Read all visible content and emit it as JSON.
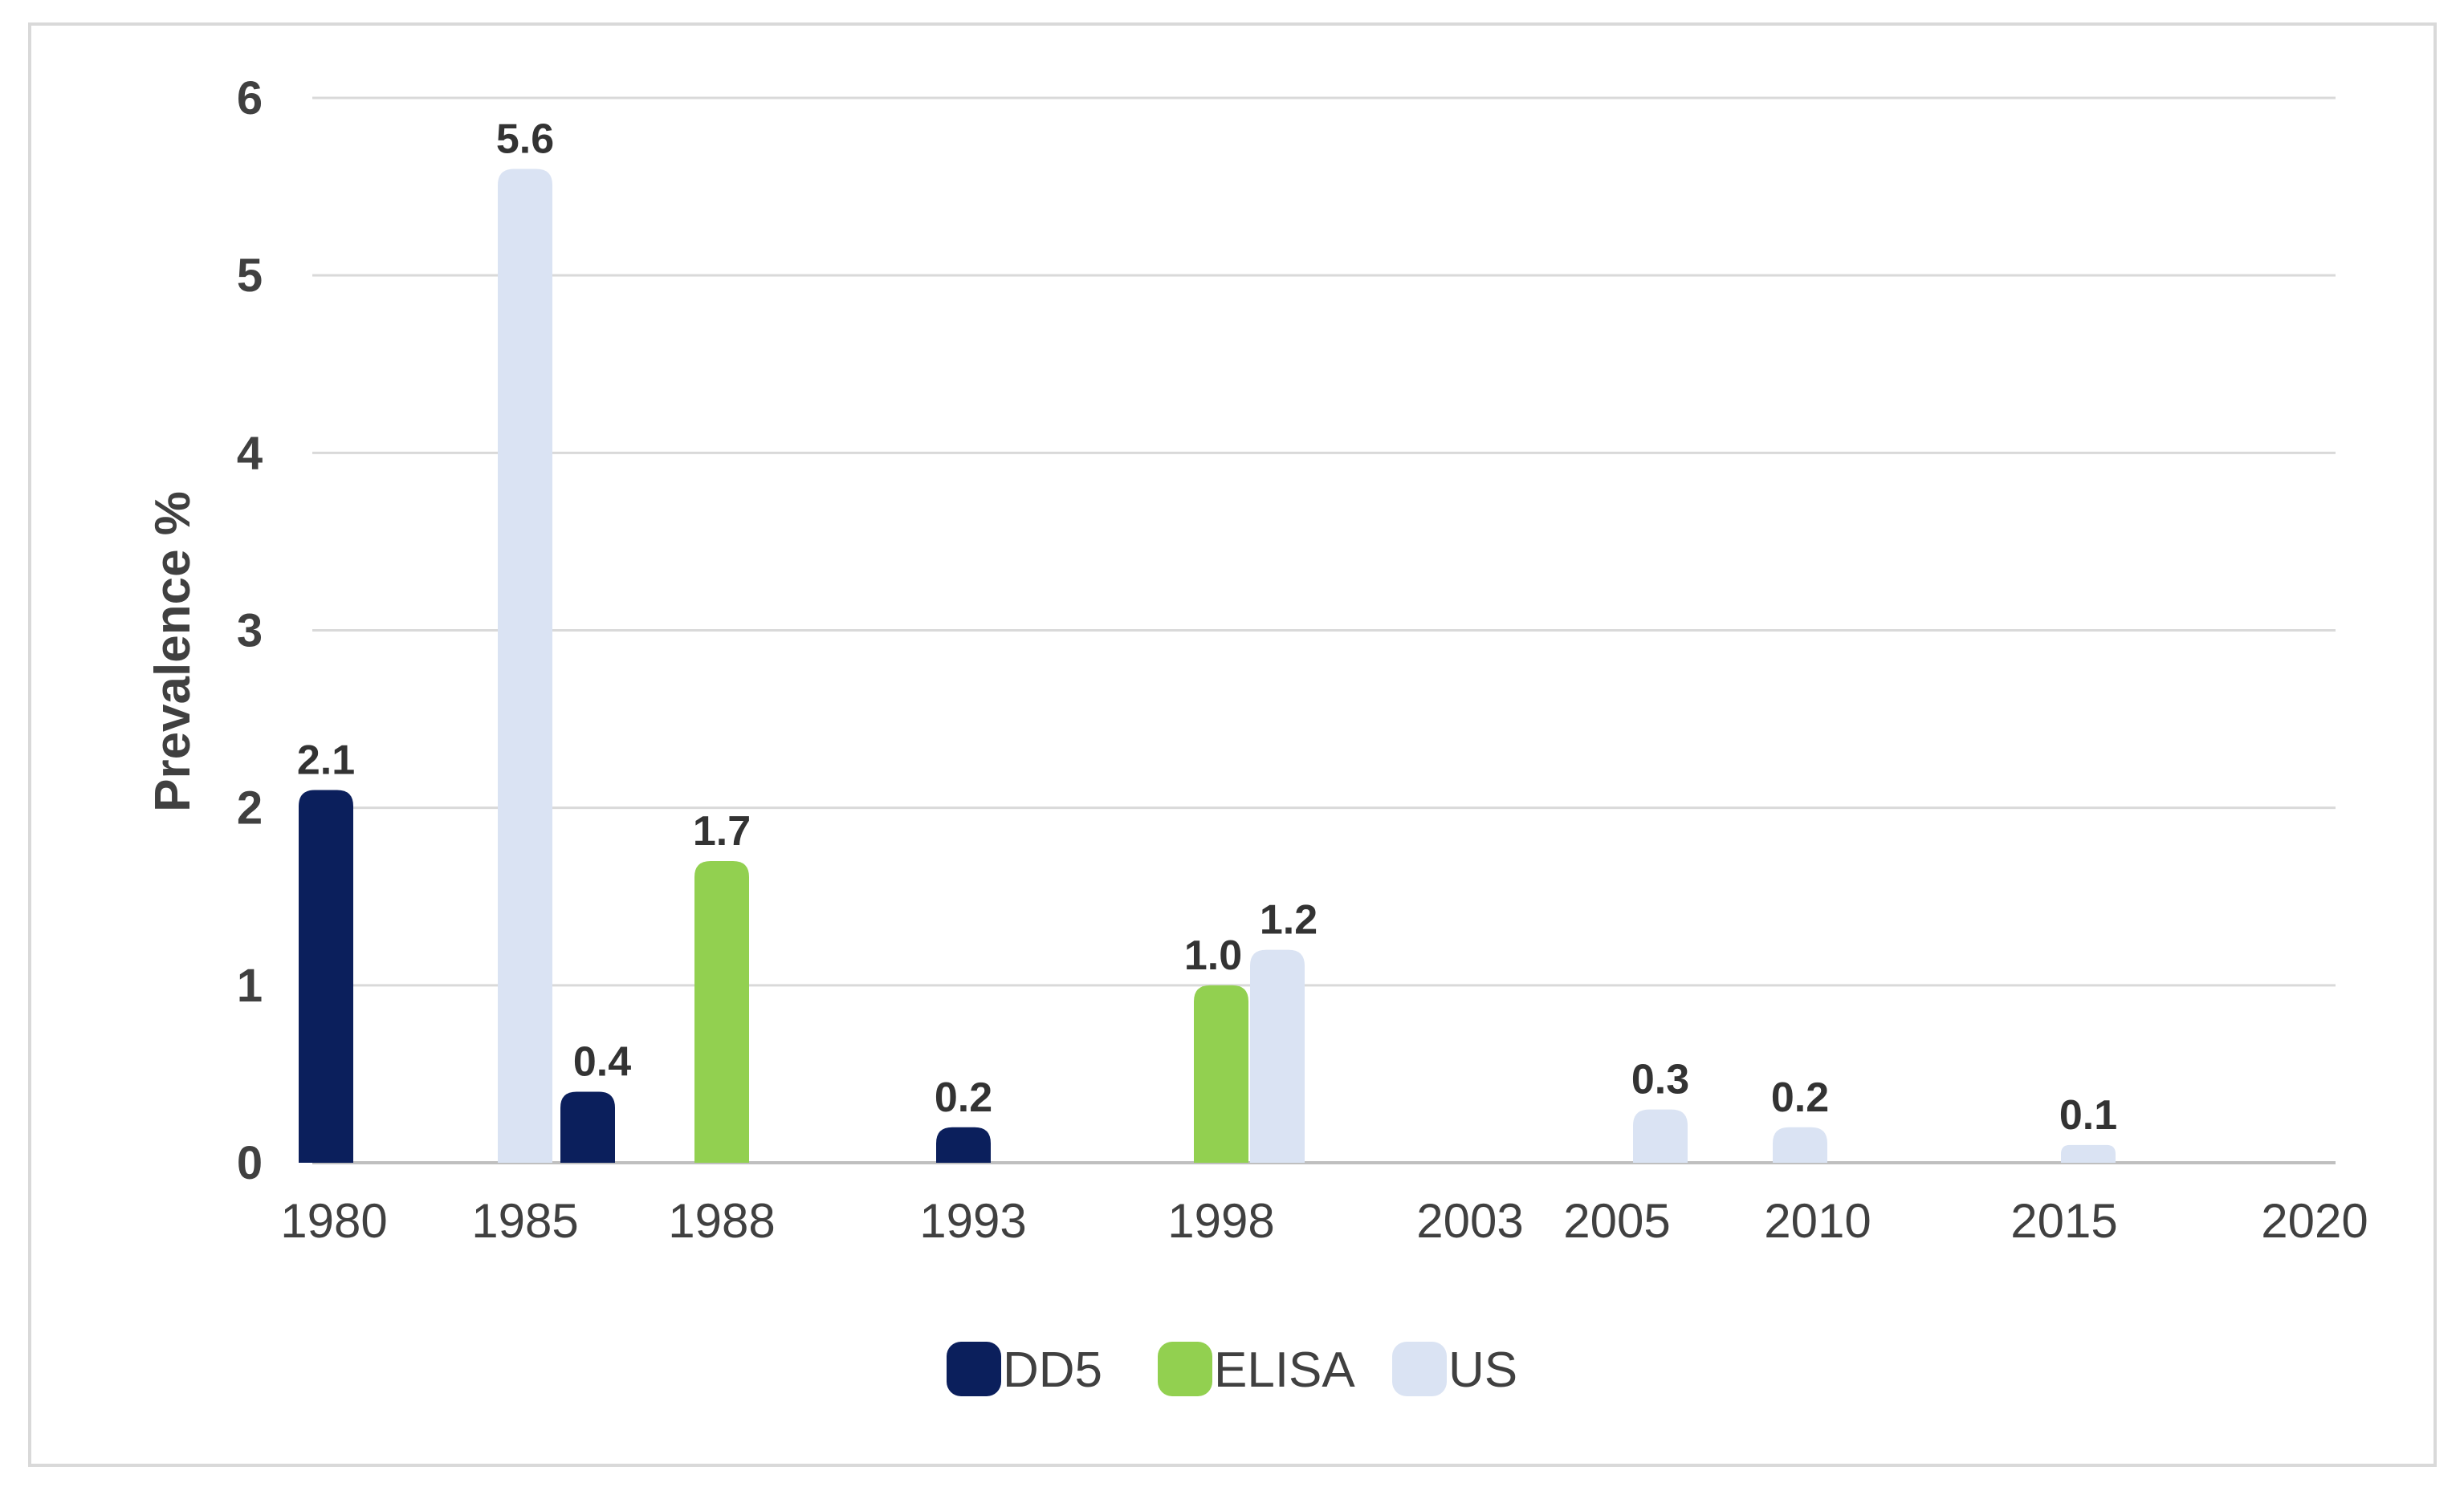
{
  "chart_data": {
    "type": "bar",
    "title": "",
    "xlabel": "",
    "ylabel": "Prevalence %",
    "ylim": [
      0,
      6
    ],
    "yticks": [
      "0",
      "1",
      "2",
      "3",
      "4",
      "5",
      "6"
    ],
    "x_tick_labels": [
      "1980",
      "1985",
      "1988",
      "1993",
      "1998",
      "2003",
      "2005",
      "2010",
      "2015",
      "2020"
    ],
    "legend_position": "bottom",
    "series": [
      {
        "name": "DD5",
        "color": "#0b1f5c",
        "points": [
          {
            "x": 1980,
            "value": 2.1,
            "label": "2.1"
          },
          {
            "x": 1985,
            "value": 0.4,
            "label": "0.4"
          },
          {
            "x": 1993,
            "value": 0.2,
            "label": "0.2"
          }
        ]
      },
      {
        "name": "ELISA",
        "color": "#92d050",
        "points": [
          {
            "x": 1988,
            "value": 1.7,
            "label": "1.7"
          },
          {
            "x": 1998,
            "value": 1.0,
            "label": "1.0"
          }
        ]
      },
      {
        "name": "US",
        "color": "#dae3f3",
        "points": [
          {
            "x": 1985,
            "value": 5.6,
            "label": "5.6"
          },
          {
            "x": 1998,
            "value": 1.2,
            "label": "1.2"
          },
          {
            "x": 2005,
            "value": 0.3,
            "label": "0.3"
          },
          {
            "x": 2010,
            "value": 0.2,
            "label": "0.2"
          },
          {
            "x": 2015,
            "value": 0.1,
            "label": "0.1"
          }
        ]
      }
    ]
  }
}
